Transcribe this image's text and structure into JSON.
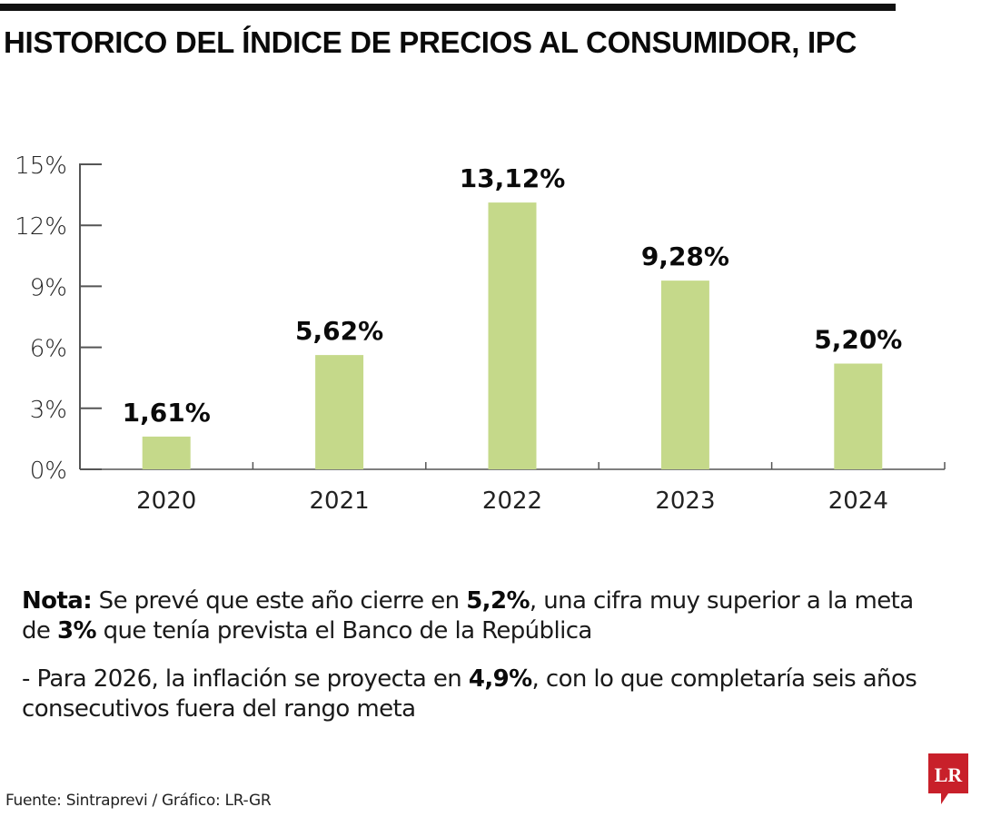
{
  "header": {
    "title": "HISTORICO DEL ÍNDICE DE PRECIOS AL CONSUMIDOR, IPC"
  },
  "chart_data": {
    "type": "bar",
    "title": "HISTORICO DEL ÍNDICE DE PRECIOS AL CONSUMIDOR, IPC",
    "xlabel": "",
    "ylabel": "",
    "categories": [
      "2020",
      "2021",
      "2022",
      "2023",
      "2024"
    ],
    "values": [
      1.61,
      5.62,
      13.12,
      9.28,
      5.2
    ],
    "value_labels": [
      "1,61%",
      "5,62%",
      "13,12%",
      "9,28%",
      "5,20%"
    ],
    "ylim": [
      0,
      15
    ],
    "yticks": [
      0,
      3,
      6,
      9,
      12,
      15
    ],
    "ytick_labels": [
      "0%",
      "3%",
      "6%",
      "9%",
      "12%",
      "15%"
    ],
    "grid": false,
    "legend": "none",
    "bar_color": "#c5d98a",
    "axis_color": "#555555"
  },
  "notes": {
    "note1": {
      "label": "Nota:",
      "text_before": " Se prevé que este año cierre en ",
      "highlight1": "5,2%",
      "text_middle": ", una cifra muy superior a la meta de ",
      "highlight2": "3%",
      "text_after": " que tenía prevista el Banco de la República"
    },
    "note2": {
      "text_before": "- Para 2026, la inflación se proyecta en ",
      "highlight": "4,9%",
      "text_after": ", con lo que completaría seis años consecutivos fuera del rango meta"
    }
  },
  "footer": {
    "source": "Fuente: Sintraprevi / Gráfico: LR-GR",
    "logo_text": "LR",
    "logo_color": "#c8202a"
  }
}
